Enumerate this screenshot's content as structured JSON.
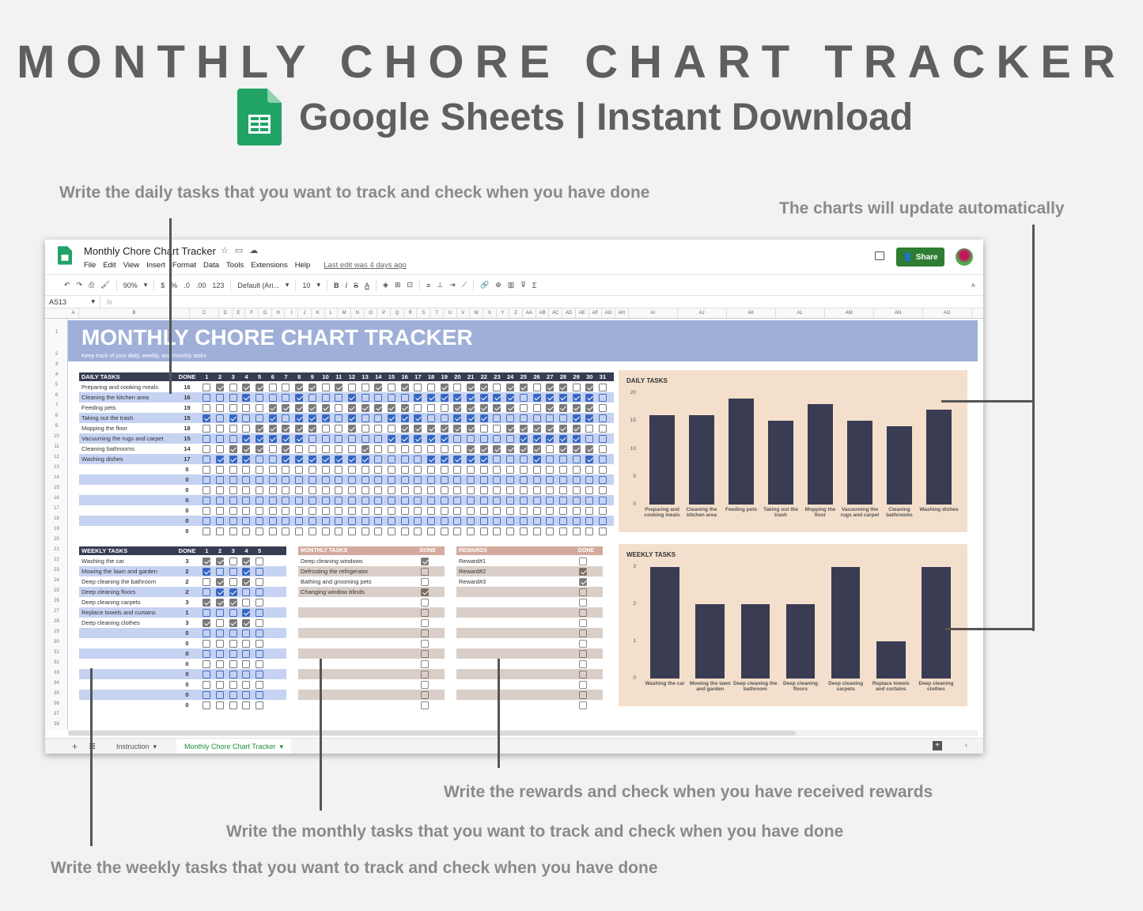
{
  "hero": {
    "title": "MONTHLY CHORE CHART TRACKER",
    "subtitle": "Google Sheets | Instant Download"
  },
  "annotations": {
    "daily": "Write the daily tasks that you want to track and check when you have done",
    "charts": "The charts will update automatically",
    "rewards": "Write the rewards and check when you have received rewards",
    "monthly": "Write the monthly tasks that you want to track and check when you have done",
    "weekly": "Write the weekly tasks that you want to track and check when you have done"
  },
  "app": {
    "doc_title": "Monthly Chore Chart Tracker",
    "menu": [
      "File",
      "Edit",
      "View",
      "Insert",
      "Format",
      "Data",
      "Tools",
      "Extensions",
      "Help"
    ],
    "last_edit": "Last edit was 4 days ago",
    "share_label": "Share",
    "toolbar": {
      "zoom": "90%",
      "currency": "$",
      "percent": "%",
      "dec_less": ".0",
      "dec_more": ".00",
      "format": "123",
      "font": "Default (Ari...",
      "font_size": "10"
    },
    "name_box": "AS13",
    "fx": "fx",
    "columns": [
      "A",
      "B",
      "C",
      "D",
      "E",
      "F",
      "G",
      "H",
      "I",
      "J",
      "K",
      "L",
      "M",
      "N",
      "O",
      "P",
      "Q",
      "R",
      "S",
      "T",
      "U",
      "V",
      "W",
      "X",
      "Y",
      "Z",
      "AA",
      "AB",
      "AC",
      "AD",
      "AE",
      "AF",
      "AG",
      "AH",
      "AI",
      "AJ",
      "AK",
      "AL",
      "AM",
      "AN",
      "AO"
    ],
    "rows": [
      "1",
      "2",
      "3",
      "4",
      "5",
      "6",
      "7",
      "8",
      "9",
      "10",
      "11",
      "12",
      "13",
      "14",
      "15",
      "16",
      "17",
      "18",
      "19",
      "20",
      "21",
      "22",
      "23",
      "24",
      "25",
      "26",
      "27",
      "28",
      "29",
      "30",
      "31",
      "32",
      "33",
      "34",
      "35",
      "36",
      "37",
      "38"
    ],
    "sheet_tabs": [
      "Instruction",
      "Monthly Chore Chart Tracker"
    ],
    "active_tab": "Monthly Chore Chart Tracker"
  },
  "sheet": {
    "banner_title": "MONTHLY CHORE CHART TRACKER",
    "banner_sub": "Keep track of your daily, weekly, and monthly tasks",
    "daily": {
      "header": "DAILY TASKS",
      "done_header": "DONE",
      "days": [
        "1",
        "2",
        "3",
        "4",
        "5",
        "6",
        "7",
        "8",
        "9",
        "10",
        "11",
        "12",
        "13",
        "14",
        "15",
        "16",
        "17",
        "18",
        "19",
        "20",
        "21",
        "22",
        "23",
        "24",
        "25",
        "26",
        "27",
        "28",
        "29",
        "30",
        "31"
      ],
      "rows": [
        {
          "task": "Preparing and cooking meals",
          "done": "16",
          "checks": [
            0,
            1,
            0,
            1,
            1,
            0,
            0,
            1,
            1,
            0,
            1,
            0,
            0,
            1,
            0,
            1,
            0,
            0,
            1,
            0,
            1,
            1,
            0,
            1,
            1,
            0,
            1,
            1,
            0,
            1,
            0
          ]
        },
        {
          "task": "Cleaning the kitchen area",
          "done": "16",
          "checks": [
            0,
            0,
            0,
            1,
            0,
            0,
            0,
            1,
            0,
            0,
            0,
            1,
            0,
            0,
            0,
            0,
            1,
            1,
            1,
            1,
            1,
            1,
            1,
            1,
            0,
            1,
            1,
            1,
            1,
            1,
            0
          ]
        },
        {
          "task": "Feeding pets",
          "done": "19",
          "checks": [
            0,
            0,
            0,
            0,
            0,
            1,
            1,
            1,
            1,
            1,
            0,
            1,
            1,
            1,
            1,
            1,
            0,
            0,
            0,
            1,
            1,
            1,
            1,
            1,
            0,
            0,
            1,
            1,
            1,
            1,
            0
          ]
        },
        {
          "task": "Taking out the trash",
          "done": "15",
          "checks": [
            1,
            0,
            1,
            0,
            0,
            1,
            0,
            1,
            1,
            1,
            0,
            1,
            0,
            0,
            1,
            1,
            1,
            0,
            0,
            1,
            1,
            1,
            0,
            0,
            0,
            0,
            0,
            0,
            1,
            1,
            0
          ]
        },
        {
          "task": "Mopping the floor",
          "done": "18",
          "checks": [
            0,
            0,
            0,
            0,
            1,
            1,
            1,
            1,
            1,
            0,
            0,
            1,
            0,
            0,
            0,
            1,
            1,
            1,
            1,
            1,
            1,
            0,
            0,
            1,
            1,
            1,
            1,
            1,
            1,
            0,
            0
          ]
        },
        {
          "task": "Vacuuming the rugs and carpet",
          "done": "15",
          "checks": [
            0,
            0,
            0,
            1,
            1,
            1,
            1,
            1,
            0,
            0,
            0,
            0,
            0,
            0,
            1,
            1,
            1,
            1,
            1,
            0,
            0,
            0,
            0,
            0,
            1,
            1,
            1,
            1,
            1,
            0,
            0
          ]
        },
        {
          "task": "Cleaning bathrooms",
          "done": "14",
          "checks": [
            0,
            0,
            1,
            1,
            1,
            0,
            1,
            0,
            0,
            0,
            0,
            0,
            1,
            0,
            0,
            0,
            0,
            0,
            0,
            0,
            1,
            1,
            1,
            1,
            1,
            1,
            0,
            1,
            1,
            1,
            0
          ]
        },
        {
          "task": "Washing dishes",
          "done": "17",
          "checks": [
            0,
            1,
            1,
            1,
            0,
            0,
            1,
            1,
            1,
            1,
            1,
            1,
            1,
            0,
            0,
            0,
            0,
            1,
            1,
            1,
            1,
            1,
            0,
            0,
            0,
            1,
            0,
            0,
            0,
            1,
            0
          ]
        },
        {
          "task": "",
          "done": "0",
          "checks": []
        },
        {
          "task": "",
          "done": "0",
          "checks": []
        },
        {
          "task": "",
          "done": "0",
          "checks": []
        },
        {
          "task": "",
          "done": "0",
          "checks": []
        },
        {
          "task": "",
          "done": "0",
          "checks": []
        },
        {
          "task": "",
          "done": "0",
          "checks": []
        },
        {
          "task": "",
          "done": "0",
          "checks": []
        }
      ]
    },
    "weekly": {
      "header": "WEEKLY TASKS",
      "done_header": "DONE",
      "weeks": [
        "1",
        "2",
        "3",
        "4",
        "5"
      ],
      "rows": [
        {
          "task": "Washing the car",
          "done": "3",
          "checks": [
            1,
            1,
            0,
            1,
            0
          ]
        },
        {
          "task": "Mowing the lawn and garden",
          "done": "2",
          "checks": [
            1,
            0,
            0,
            1,
            0
          ]
        },
        {
          "task": "Deep cleaning the bathroom",
          "done": "2",
          "checks": [
            0,
            1,
            0,
            1,
            0
          ]
        },
        {
          "task": "Deep cleaning floors",
          "done": "2",
          "checks": [
            0,
            1,
            1,
            0,
            0
          ]
        },
        {
          "task": "Deep cleaning carpets",
          "done": "3",
          "checks": [
            1,
            1,
            1,
            0,
            0
          ]
        },
        {
          "task": "Replace towels and curtains",
          "done": "1",
          "checks": [
            0,
            0,
            0,
            1,
            0
          ]
        },
        {
          "task": "Deep cleaning clothes",
          "done": "3",
          "checks": [
            1,
            0,
            1,
            1,
            0
          ]
        },
        {
          "task": "",
          "done": "0",
          "checks": []
        },
        {
          "task": "",
          "done": "0",
          "checks": []
        },
        {
          "task": "",
          "done": "0",
          "checks": []
        },
        {
          "task": "",
          "done": "0",
          "checks": []
        },
        {
          "task": "",
          "done": "0",
          "checks": []
        },
        {
          "task": "",
          "done": "0",
          "checks": []
        },
        {
          "task": "",
          "done": "0",
          "checks": []
        },
        {
          "task": "",
          "done": "0",
          "checks": []
        }
      ]
    },
    "monthly": {
      "header": "MONTHLY TASKS",
      "done_header": "DONE",
      "rows": [
        {
          "task": "Deep cleaning windows",
          "done": 1
        },
        {
          "task": "Defrosting the refrigerator",
          "done": 0
        },
        {
          "task": "Bathing and grooming pets",
          "done": 0
        },
        {
          "task": "Changing window blinds",
          "done": 1
        },
        {
          "task": "",
          "done": 0
        },
        {
          "task": "",
          "done": 0
        },
        {
          "task": "",
          "done": 0
        },
        {
          "task": "",
          "done": 0
        },
        {
          "task": "",
          "done": 0
        },
        {
          "task": "",
          "done": 0
        },
        {
          "task": "",
          "done": 0
        },
        {
          "task": "",
          "done": 0
        },
        {
          "task": "",
          "done": 0
        },
        {
          "task": "",
          "done": 0
        },
        {
          "task": "",
          "done": 0
        }
      ]
    },
    "rewards": {
      "header": "REWARDS",
      "done_header": "DONE",
      "rows": [
        {
          "task": "Reward#1",
          "done": 0
        },
        {
          "task": "Reward#2",
          "done": 1
        },
        {
          "task": "Reward#3",
          "done": 1
        },
        {
          "task": "",
          "done": 0
        },
        {
          "task": "",
          "done": 0
        },
        {
          "task": "",
          "done": 0
        },
        {
          "task": "",
          "done": 0
        },
        {
          "task": "",
          "done": 0
        },
        {
          "task": "",
          "done": 0
        },
        {
          "task": "",
          "done": 0
        },
        {
          "task": "",
          "done": 0
        },
        {
          "task": "",
          "done": 0
        },
        {
          "task": "",
          "done": 0
        },
        {
          "task": "",
          "done": 0
        },
        {
          "task": "",
          "done": 0
        }
      ]
    }
  },
  "chart_data": [
    {
      "type": "bar",
      "title": "DAILY TASKS",
      "categories": [
        "Preparing and cooking meals",
        "Cleaning the kitchen area",
        "Feeding pets",
        "Taking out the trash",
        "Mopping the floor",
        "Vacuuming the rugs and carpet",
        "Cleaning bathrooms",
        "Washing dishes"
      ],
      "values": [
        16,
        16,
        19,
        15,
        18,
        15,
        14,
        17
      ],
      "yticks": [
        "0",
        "5",
        "10",
        "15",
        "20"
      ],
      "ylim": [
        0,
        20
      ],
      "xlabel": "",
      "ylabel": "",
      "bar_color": "#393c52",
      "background": "#f3dfcc"
    },
    {
      "type": "bar",
      "title": "WEEKLY TASKS",
      "categories": [
        "Washing the car",
        "Mowing the lawn and garden",
        "Deep cleaning the bathroom",
        "Deep cleaning floors",
        "Deep cleaning carpets",
        "Replace towels and curtains",
        "Deep cleaning clothes"
      ],
      "values": [
        3,
        2,
        2,
        2,
        3,
        1,
        3
      ],
      "yticks": [
        "0",
        "1",
        "2",
        "3"
      ],
      "ylim": [
        0,
        3
      ],
      "xlabel": "",
      "ylabel": "",
      "bar_color": "#393c52",
      "background": "#f3dfcc"
    }
  ],
  "colors": {
    "banner": "#9fafd8",
    "header_dark": "#383c52",
    "alt_row_blue": "#c6d2f1",
    "monthly_header": "#d3ab9e",
    "monthly_alt": "#d9cfc8",
    "share_green": "#2e7d32"
  }
}
